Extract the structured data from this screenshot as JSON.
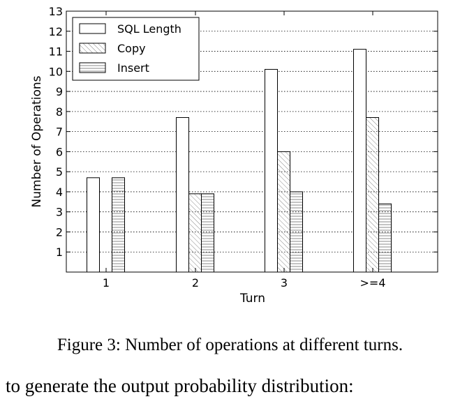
{
  "chart_data": {
    "type": "bar",
    "xlabel": "Turn",
    "ylabel": "Number of Operations",
    "categories": [
      "1",
      "2",
      "3",
      ">=4"
    ],
    "ylim": [
      0,
      13
    ],
    "yticks": [
      1,
      2,
      3,
      4,
      5,
      6,
      7,
      8,
      9,
      10,
      11,
      12,
      13
    ],
    "grid": "horizontal dotted",
    "legend_position": "top-left",
    "series": [
      {
        "name": "SQL Length",
        "pattern": "none",
        "values": [
          4.7,
          7.7,
          10.1,
          11.1
        ]
      },
      {
        "name": "Copy",
        "pattern": "diagonal hatch",
        "values": [
          0,
          3.9,
          6.0,
          7.7
        ]
      },
      {
        "name": "Insert",
        "pattern": "horizontal hatch",
        "values": [
          4.7,
          3.9,
          4.0,
          3.4
        ]
      }
    ]
  },
  "caption": "Figure 3: Number of operations at different turns.",
  "body_text": "to generate the output probability distribution:"
}
